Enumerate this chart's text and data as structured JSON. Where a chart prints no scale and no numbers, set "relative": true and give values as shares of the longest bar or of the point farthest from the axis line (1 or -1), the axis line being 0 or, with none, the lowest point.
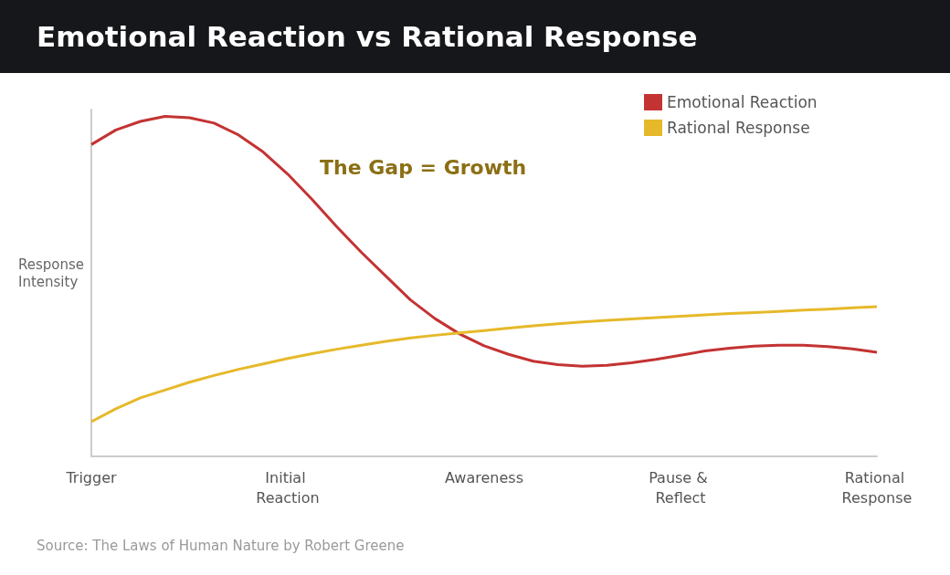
{
  "chart_data": {
    "type": "line",
    "title": "Emotional Reaction vs Rational Response",
    "ylabel": "Response Intensity",
    "relative": true,
    "annotations": [
      "The Gap = Growth",
      "Source: The Laws of Human Nature by Robert Greene"
    ],
    "categories": [
      "Trigger",
      null,
      null,
      null,
      null,
      null,
      null,
      null,
      "Initial Reaction",
      null,
      null,
      null,
      null,
      null,
      null,
      null,
      "Awareness",
      null,
      null,
      null,
      null,
      null,
      null,
      null,
      "Pause & Reflect",
      null,
      null,
      null,
      null,
      null,
      null,
      null,
      "Rational Response"
    ],
    "legend": "top right",
    "series": [
      {
        "name": "Emotional Reaction",
        "color": "#c43333",
        "values": [
          0.917,
          0.96,
          0.985,
          1,
          0.996,
          0.98,
          0.945,
          0.895,
          0.83,
          0.755,
          0.675,
          0.6,
          0.53,
          0.46,
          0.405,
          0.36,
          0.325,
          0.3,
          0.28,
          0.27,
          0.265,
          0.268,
          0.275,
          0.285,
          0.297,
          0.31,
          0.318,
          0.324,
          0.327,
          0.327,
          0.323,
          0.316,
          0.306
        ]
      },
      {
        "name": "Rational Response",
        "color": "#e6b92a",
        "values": [
          0.102,
          0.14,
          0.172,
          0.195,
          0.218,
          0.238,
          0.256,
          0.272,
          0.288,
          0.302,
          0.315,
          0.327,
          0.338,
          0.348,
          0.356,
          0.363,
          0.37,
          0.377,
          0.384,
          0.39,
          0.395,
          0.4,
          0.404,
          0.408,
          0.412,
          0.416,
          0.42,
          0.423,
          0.426,
          0.43,
          0.433,
          0.437,
          0.44
        ]
      }
    ]
  }
}
